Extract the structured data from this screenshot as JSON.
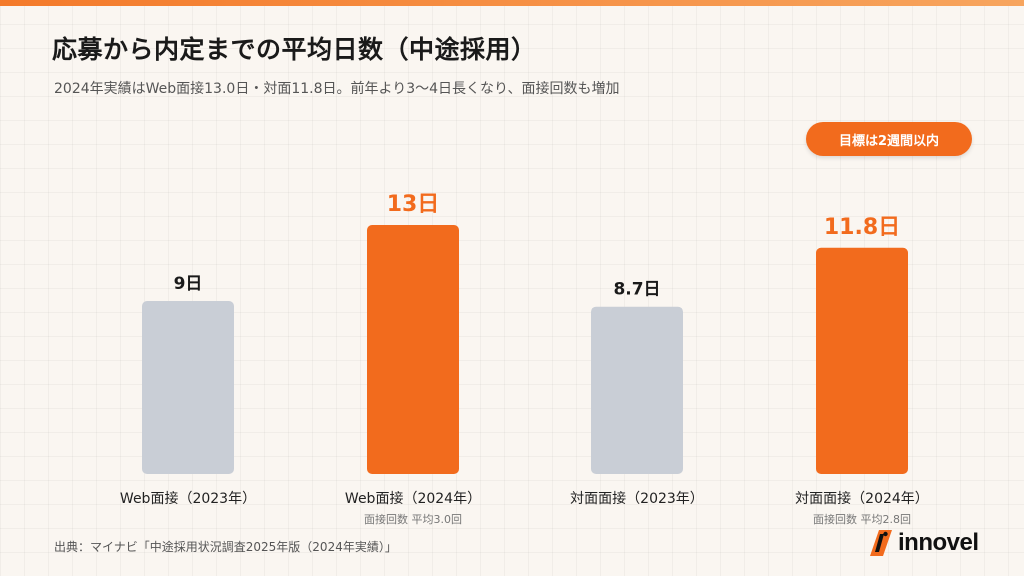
{
  "title": "応募から内定までの平均日数（中途採用）",
  "subtitle": "2024年実績はWeb面接13.0日・対面11.8日。前年より3〜4日長くなり、面接回数も増加",
  "badge": "目標は2週間以内",
  "source": "出典：マイナビ「中途採用状況調査2025年版（2024年実績）」",
  "logo": {
    "text": "innovel",
    "icon": "innovel-logo-mark-icon"
  },
  "colors": {
    "accent": "#f26b1d",
    "muted": "#c9ced6",
    "background": "#faf6f1"
  },
  "chart_data": {
    "type": "bar",
    "title": "応募から内定までの平均日数（中途採用）",
    "xlabel": "",
    "ylabel": "",
    "ylim": [
      0,
      17
    ],
    "grid": false,
    "legend": "none",
    "categories": [
      "Web面接（2023年）",
      "Web面接（2024年）",
      "対面面接（2023年）",
      "対面面接（2024年）"
    ],
    "values": [
      9,
      13,
      8.7,
      11.8
    ],
    "data_labels": [
      "9日",
      "13日",
      "8.7日",
      "11.8日"
    ],
    "highlight": [
      false,
      true,
      false,
      true
    ],
    "annotations": [
      "",
      "面接回数 平均3.0回",
      "",
      "面接回数 平均2.8回"
    ]
  }
}
